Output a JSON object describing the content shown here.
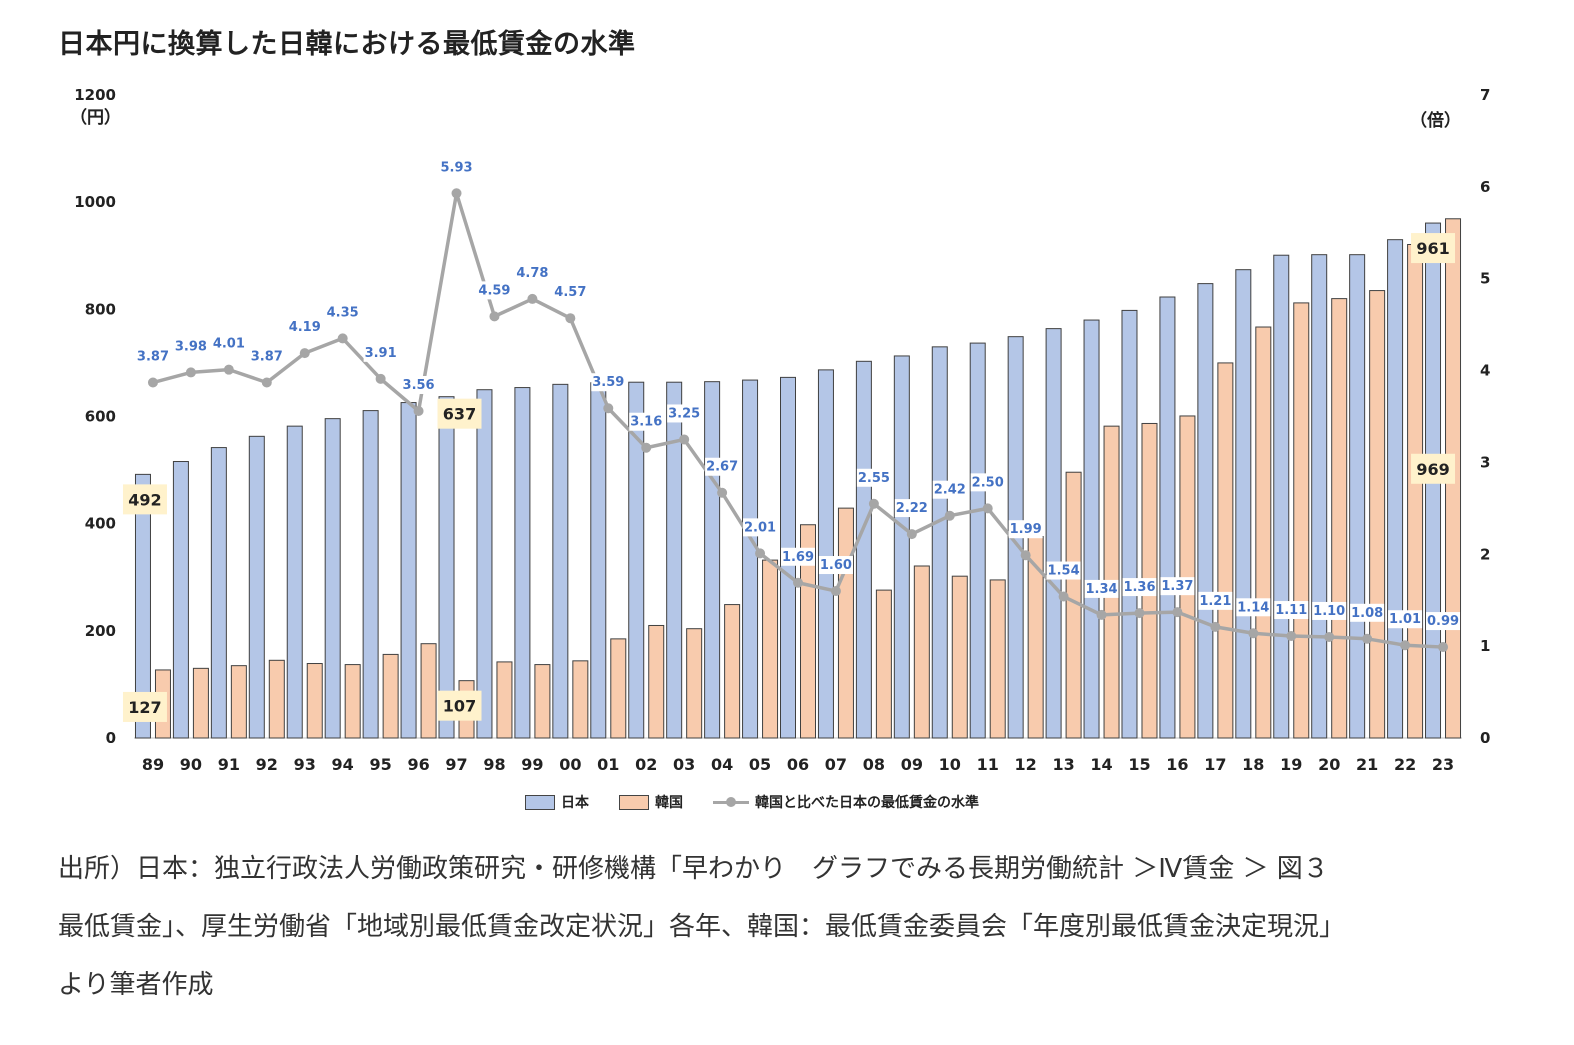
{
  "title": "日本円に換算した日韓における最低賃金の水準",
  "colors": {
    "japan": "#b4c6e7",
    "korea": "#f8cbad",
    "ratio": "#a6a6a6",
    "ratio_label": "#4472c4",
    "callout_bg": "#fff2cc"
  },
  "chart_data": {
    "type": "bar",
    "categories": [
      "89",
      "90",
      "91",
      "92",
      "93",
      "94",
      "95",
      "96",
      "97",
      "98",
      "99",
      "00",
      "01",
      "02",
      "03",
      "04",
      "05",
      "06",
      "07",
      "08",
      "09",
      "10",
      "11",
      "12",
      "13",
      "14",
      "15",
      "16",
      "17",
      "18",
      "19",
      "20",
      "21",
      "22",
      "23"
    ],
    "series": [
      {
        "name": "日本",
        "axis": "left",
        "values": [
          492,
          516,
          542,
          563,
          582,
          596,
          611,
          626,
          637,
          650,
          654,
          660,
          663,
          664,
          664,
          665,
          668,
          673,
          687,
          703,
          713,
          730,
          737,
          749,
          764,
          780,
          798,
          823,
          848,
          874,
          901,
          902,
          902,
          930,
          961
        ]
      },
      {
        "name": "韓国",
        "axis": "left",
        "values": [
          127,
          130,
          135,
          145,
          139,
          137,
          156,
          176,
          107,
          142,
          137,
          144,
          185,
          210,
          204,
          249,
          332,
          398,
          429,
          276,
          321,
          302,
          295,
          376,
          496,
          582,
          587,
          601,
          700,
          767,
          812,
          820,
          835,
          921,
          969
        ]
      },
      {
        "name": "韓国と比べた日本の最低賃金の水準",
        "type": "line",
        "axis": "right",
        "values": [
          3.87,
          3.98,
          4.01,
          3.87,
          4.19,
          4.35,
          3.91,
          3.56,
          5.93,
          4.59,
          4.78,
          4.57,
          3.59,
          3.16,
          3.25,
          2.67,
          2.01,
          1.69,
          1.6,
          2.55,
          2.22,
          2.42,
          2.5,
          1.99,
          1.54,
          1.34,
          1.36,
          1.37,
          1.21,
          1.14,
          1.11,
          1.1,
          1.08,
          1.01,
          0.99
        ]
      }
    ],
    "ratio_labels": [
      "3.87",
      "3.98",
      "4.01",
      "3.87",
      "4.19",
      "4.35",
      "3.91",
      "3.56",
      "5.93",
      "4.59",
      "4.78",
      "4.57",
      "3.59",
      "3.16",
      "3.25",
      "2.67",
      "2.01",
      "1.69",
      "1.60",
      "2.55",
      "2.22",
      "2.42",
      "2.50",
      "1.99",
      "1.54",
      "1.34",
      "1.36",
      "1.37",
      "1.21",
      "1.14",
      "1.11",
      "1.10",
      "1.08",
      "1.01",
      "0.99"
    ],
    "y_left": {
      "min": 0,
      "max": 1200,
      "ticks": [
        "0",
        "200",
        "400",
        "600",
        "800",
        "1000",
        "1200"
      ],
      "unit": "（円）"
    },
    "y_right": {
      "min": 0,
      "max": 7,
      "ticks": [
        "0",
        "1",
        "2",
        "3",
        "4",
        "5",
        "6",
        "7"
      ],
      "unit": "（倍）"
    },
    "callouts": [
      {
        "series": 0,
        "index": 0,
        "text": "492"
      },
      {
        "series": 1,
        "index": 0,
        "text": "127"
      },
      {
        "series": 0,
        "index": 8,
        "text": "637"
      },
      {
        "series": 1,
        "index": 8,
        "text": "107"
      },
      {
        "series": 0,
        "index": 34,
        "text": "961"
      },
      {
        "series": 1,
        "index": 34,
        "text": "969"
      }
    ],
    "legend": [
      "日本",
      "韓国",
      "韓国と比べた日本の最低賃金の水準"
    ],
    "legend_position": "bottom",
    "grid": false
  },
  "source": [
    "出所）日本：独立行政法人労働政策研究・研修機構「早わかり　グラフでみる長期労働統計 ＞Ⅳ賃金 ＞ 図３",
    "最低賃金」、厚生労働省「地域別最低賃金改定状況」各年、韓国：最低賃金委員会「年度別最低賃金決定現況」",
    "より筆者作成"
  ]
}
